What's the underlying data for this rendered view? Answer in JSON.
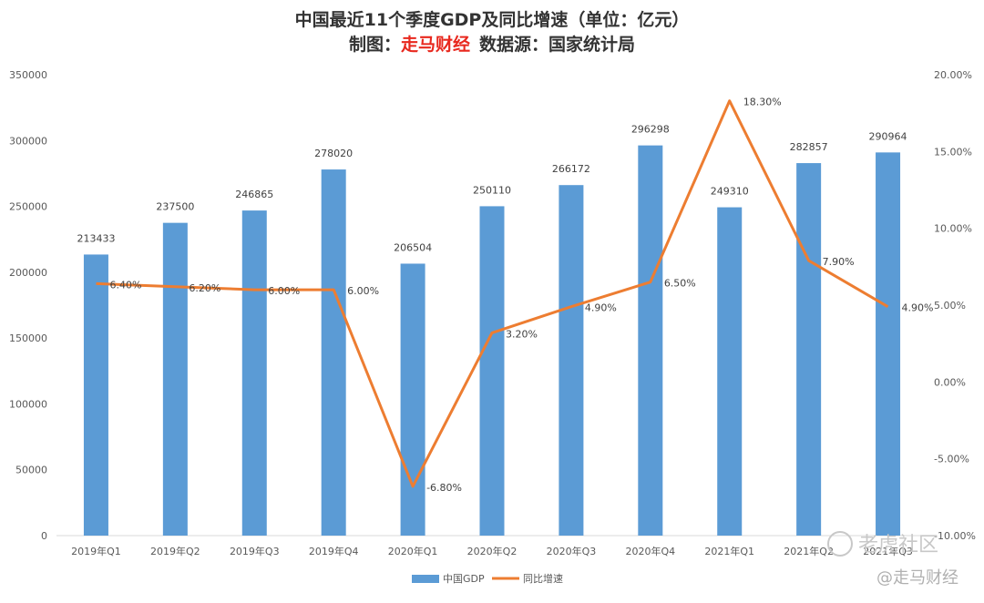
{
  "chart_data": {
    "type": "bar",
    "title": "中国最近11个季度GDP及同比增速（单位：亿元）",
    "subtitle_prefix": "制图：",
    "subtitle_brand": "走马财经",
    "subtitle_suffix": "数据源：国家统计局",
    "categories": [
      "2019年Q1",
      "2019年Q2",
      "2019年Q3",
      "2019年Q4",
      "2020年Q1",
      "2020年Q2",
      "2020年Q3",
      "2020年Q4",
      "2021年Q1",
      "2021年Q2",
      "2021年Q3"
    ],
    "series": [
      {
        "name": "中国GDP",
        "type": "bar",
        "axis": "left",
        "color": "#5b9bd5",
        "values": [
          213433,
          237500,
          246865,
          278020,
          206504,
          250110,
          266172,
          296298,
          249310,
          282857,
          290964
        ]
      },
      {
        "name": "同比增速",
        "type": "line",
        "axis": "right",
        "color": "#ed7d31",
        "values": [
          6.4,
          6.2,
          6.0,
          6.0,
          -6.8,
          3.2,
          4.9,
          6.5,
          18.3,
          7.9,
          4.9
        ],
        "labels": [
          "6.40%",
          "6.20%",
          "6.00%",
          "6.00%",
          "-6.80%",
          "3.20%",
          "4.90%",
          "6.50%",
          "18.30%",
          "7.90%",
          "4.90%"
        ]
      }
    ],
    "y_left": {
      "min": 0,
      "max": 350000,
      "ticks": [
        "0",
        "50000",
        "100000",
        "150000",
        "200000",
        "250000",
        "300000",
        "350000"
      ]
    },
    "y_right": {
      "min": -10,
      "max": 20,
      "ticks": [
        "-10.00%",
        "-5.00%",
        "0.00%",
        "5.00%",
        "10.00%",
        "15.00%",
        "20.00%"
      ]
    },
    "legend_position": "bottom-center"
  },
  "watermark": {
    "community": "老虎社区",
    "brand": "@走马财经"
  }
}
